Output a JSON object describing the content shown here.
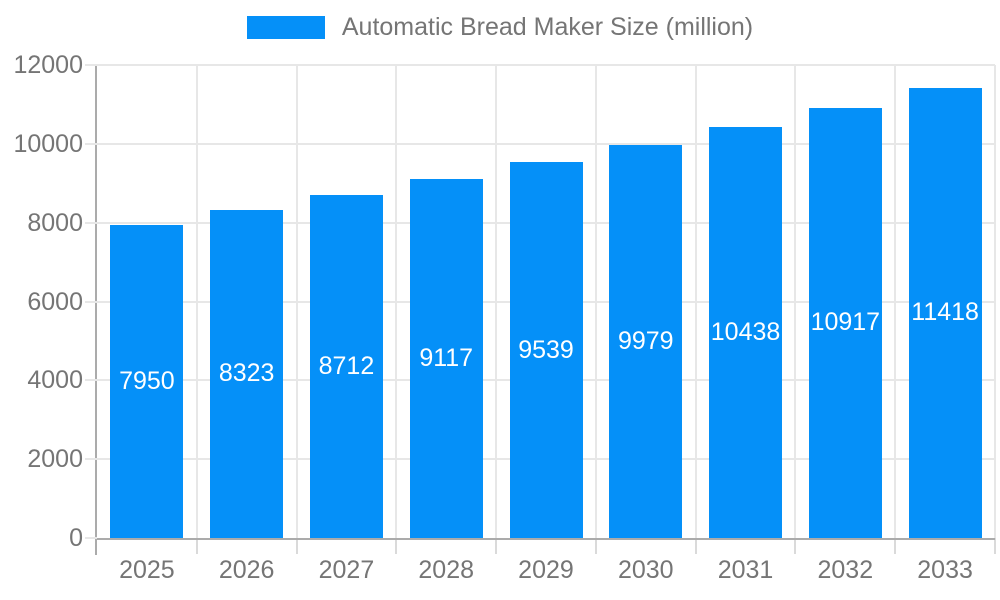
{
  "chart_data": {
    "type": "bar",
    "title": "Automatic Bread Maker Size (million)",
    "categories": [
      "2025",
      "2026",
      "2027",
      "2028",
      "2029",
      "2030",
      "2031",
      "2032",
      "2033"
    ],
    "values": [
      7950,
      8323,
      8712,
      9117,
      9539,
      9979,
      10438,
      10917,
      11418
    ],
    "xlabel": "",
    "ylabel": "",
    "ylim": [
      0,
      12000
    ],
    "ytick_labels": [
      "0",
      "2000",
      "4000",
      "6000",
      "8000",
      "10000",
      "12000"
    ],
    "grid": true,
    "legend_position": "top-center",
    "bar_labels_inside": true,
    "colors": {
      "bar": "#0590f8",
      "bar_label": "#ffffff",
      "axis_text": "#757575",
      "legend_text": "#757575",
      "gridline": "#e7e7e7",
      "tick": "#dadada",
      "axis_line": "#ababab",
      "background": "#ffffff"
    }
  }
}
